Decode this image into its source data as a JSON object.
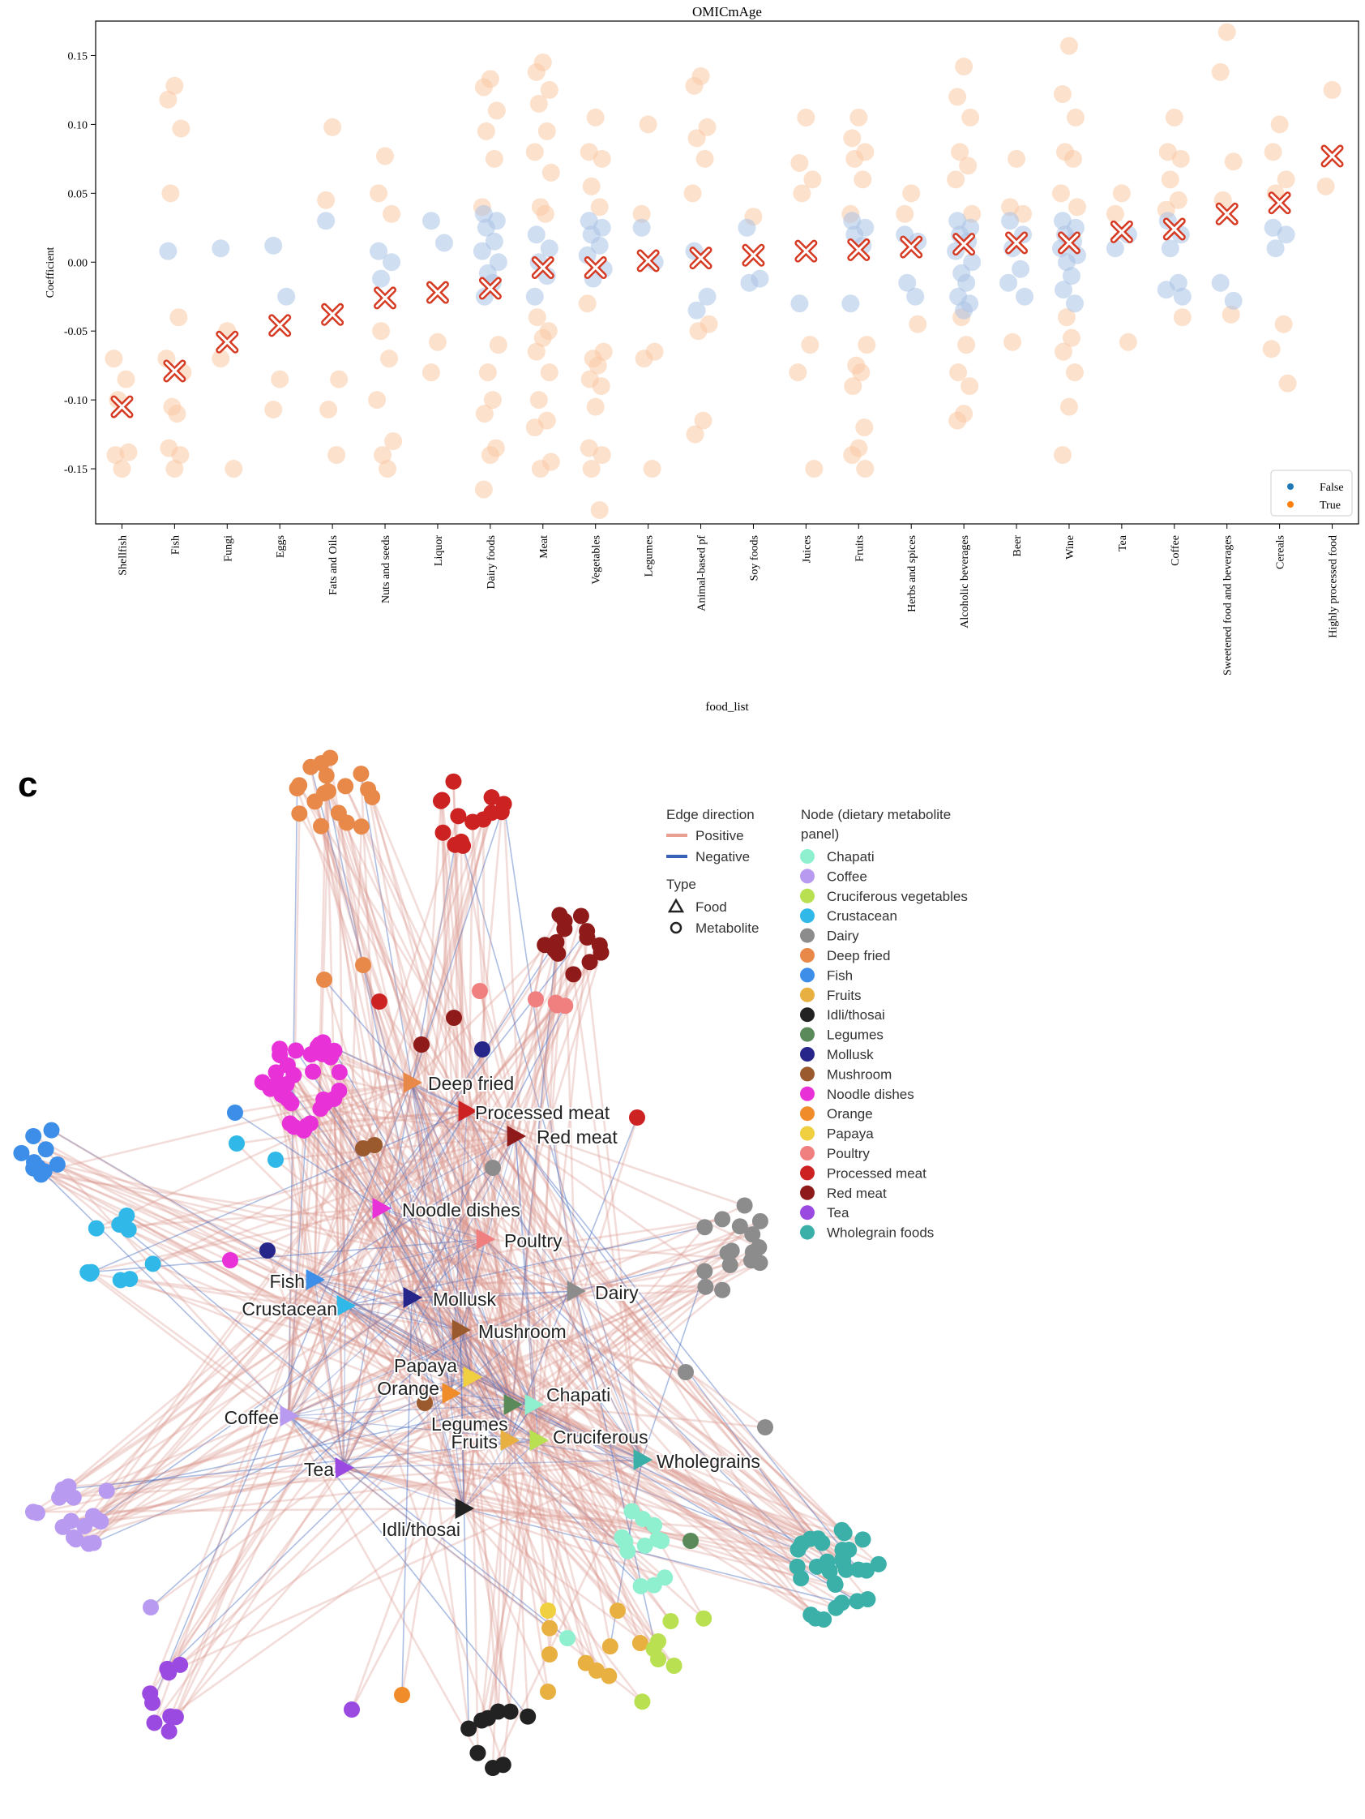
{
  "chart_data": {
    "type": "scatter",
    "title": "OMICmAge",
    "xlabel": "food_list",
    "ylabel": "Coefficient",
    "ylim": [
      -0.19,
      0.175
    ],
    "yticks": [
      "0.15",
      "0.10",
      "0.05",
      "0.00",
      "-0.05",
      "-0.10",
      "-0.15"
    ],
    "ytick_values": [
      0.15,
      0.1,
      0.05,
      0.0,
      -0.05,
      -0.1,
      -0.15
    ],
    "legend": {
      "position": "bottom-right",
      "entries": [
        {
          "label": "False",
          "color": "#1f77b4"
        },
        {
          "label": "True",
          "color": "#ff7f0e"
        }
      ]
    },
    "categories": [
      "Shellfish",
      "Fish",
      "Fungi",
      "Eggs",
      "Fats and Oils",
      "Nuts and seeds",
      "Liquor",
      "Dairy foods",
      "Meat",
      "Vegetables",
      "Legumes",
      "Animal-based pf",
      "Soy foods",
      "Juices",
      "Fruits",
      "Herbs and spices",
      "Alcoholic beverages",
      "Beer",
      "Wine",
      "Tea",
      "Coffee",
      "Sweetened food and beverages",
      "Cereals",
      "Highly processed food"
    ],
    "means": [
      -0.105,
      -0.079,
      -0.058,
      -0.046,
      -0.038,
      -0.026,
      -0.022,
      -0.019,
      -0.004,
      -0.004,
      0.001,
      0.003,
      0.005,
      0.008,
      0.009,
      0.011,
      0.013,
      0.014,
      0.014,
      0.022,
      0.024,
      0.035,
      0.043,
      0.077
    ],
    "points": [
      {
        "t": [
          -0.15,
          -0.14,
          -0.138,
          -0.1,
          -0.085,
          -0.07
        ],
        "f": []
      },
      {
        "t": [
          0.128,
          0.118,
          0.097,
          0.05,
          -0.04,
          -0.07,
          -0.08,
          -0.105,
          -0.11,
          -0.135,
          -0.14,
          -0.15
        ],
        "f": [
          0.008
        ]
      },
      {
        "t": [
          -0.05,
          -0.07,
          -0.15
        ],
        "f": [
          0.01
        ]
      },
      {
        "t": [
          -0.085,
          -0.107
        ],
        "f": [
          0.012,
          -0.025
        ]
      },
      {
        "t": [
          0.098,
          0.045,
          -0.085,
          -0.107,
          -0.14
        ],
        "f": [
          0.03
        ]
      },
      {
        "t": [
          0.077,
          0.05,
          0.035,
          -0.05,
          -0.07,
          -0.1,
          -0.13,
          -0.14,
          -0.15
        ],
        "f": [
          0.008,
          0.0,
          -0.012
        ]
      },
      {
        "t": [
          -0.058,
          -0.08
        ],
        "f": [
          0.03,
          0.014
        ]
      },
      {
        "t": [
          0.133,
          0.127,
          0.11,
          0.095,
          0.075,
          0.04,
          -0.06,
          -0.08,
          -0.1,
          -0.11,
          -0.135,
          -0.14,
          -0.165
        ],
        "f": [
          0.035,
          0.03,
          0.025,
          0.015,
          0.008,
          0.0,
          -0.008,
          -0.015,
          -0.025
        ]
      },
      {
        "t": [
          0.145,
          0.138,
          0.125,
          0.115,
          0.095,
          0.08,
          0.065,
          0.04,
          0.035,
          -0.04,
          -0.05,
          -0.055,
          -0.065,
          -0.08,
          -0.1,
          -0.115,
          -0.12,
          -0.145,
          -0.15
        ],
        "f": [
          0.02,
          0.01,
          0.0,
          -0.01,
          -0.025
        ]
      },
      {
        "t": [
          0.105,
          0.08,
          0.075,
          0.055,
          0.04,
          -0.03,
          -0.065,
          -0.07,
          -0.075,
          -0.085,
          -0.09,
          -0.105,
          -0.135,
          -0.14,
          -0.15,
          -0.18
        ],
        "f": [
          0.03,
          0.025,
          0.02,
          0.012,
          0.005,
          -0.005,
          -0.012
        ]
      },
      {
        "t": [
          0.1,
          0.035,
          -0.065,
          -0.07,
          -0.15
        ],
        "f": [
          0.025,
          0.0
        ]
      },
      {
        "t": [
          0.135,
          0.128,
          0.098,
          0.09,
          0.075,
          0.05,
          -0.045,
          -0.05,
          -0.115,
          -0.125
        ],
        "f": [
          0.008,
          -0.025,
          -0.035
        ]
      },
      {
        "t": [
          0.033
        ],
        "f": [
          0.025,
          -0.012,
          -0.015
        ]
      },
      {
        "t": [
          0.105,
          0.072,
          0.06,
          0.05,
          -0.06,
          -0.08,
          -0.15
        ],
        "f": [
          -0.03
        ]
      },
      {
        "t": [
          0.105,
          0.09,
          0.08,
          0.075,
          0.06,
          0.035,
          -0.06,
          -0.075,
          -0.08,
          -0.09,
          -0.12,
          -0.135,
          -0.14,
          -0.15
        ],
        "f": [
          0.03,
          0.025,
          0.02,
          0.012,
          -0.03
        ]
      },
      {
        "t": [
          0.05,
          0.035,
          -0.045
        ],
        "f": [
          0.02,
          0.015,
          -0.015,
          -0.025
        ]
      },
      {
        "t": [
          0.142,
          0.12,
          0.105,
          0.08,
          0.07,
          0.06,
          0.035,
          -0.04,
          -0.06,
          -0.08,
          -0.09,
          -0.11,
          -0.115
        ],
        "f": [
          0.03,
          0.025,
          0.02,
          0.015,
          0.008,
          0.0,
          -0.008,
          -0.015,
          -0.025,
          -0.03,
          -0.035
        ]
      },
      {
        "t": [
          0.075,
          0.04,
          0.035,
          -0.058
        ],
        "f": [
          0.03,
          0.02,
          0.01,
          -0.005,
          -0.015,
          -0.025
        ]
      },
      {
        "t": [
          0.157,
          0.122,
          0.105,
          0.08,
          0.075,
          0.05,
          0.04,
          -0.04,
          -0.055,
          -0.065,
          -0.08,
          -0.105,
          -0.14
        ],
        "f": [
          0.03,
          0.025,
          0.02,
          0.015,
          0.01,
          0.005,
          0.0,
          -0.01,
          -0.02,
          -0.03
        ]
      },
      {
        "t": [
          0.05,
          0.035,
          -0.058
        ],
        "f": [
          0.01,
          0.02
        ]
      },
      {
        "t": [
          0.105,
          0.08,
          0.075,
          0.06,
          0.045,
          0.038,
          -0.04
        ],
        "f": [
          0.03,
          0.02,
          0.01,
          -0.015,
          -0.02,
          -0.025
        ]
      },
      {
        "t": [
          0.167,
          0.138,
          0.073,
          0.045,
          -0.038
        ],
        "f": [
          -0.015,
          -0.028
        ]
      },
      {
        "t": [
          0.1,
          0.08,
          0.06,
          0.05,
          -0.045,
          -0.063,
          -0.088
        ],
        "f": [
          0.025,
          0.02,
          0.01
        ]
      },
      {
        "t": [
          0.125,
          0.055
        ],
        "f": []
      }
    ]
  },
  "network": {
    "panel_label": "c",
    "legend": {
      "edge_title": "Edge direction",
      "edge_items": [
        {
          "label": "Positive",
          "color": "#e8a090"
        },
        {
          "label": "Negative",
          "color": "#3a63b8"
        }
      ],
      "type_title": "Type",
      "type_items": [
        {
          "label": "Food",
          "symbol": "triangle"
        },
        {
          "label": "Metabolite",
          "symbol": "circle"
        }
      ],
      "node_title_1": "Node (dietary metabolite",
      "node_title_2": "panel)",
      "node_items": [
        {
          "label": "Chapati",
          "color": "#8ff0d0"
        },
        {
          "label": "Coffee",
          "color": "#b89af0"
        },
        {
          "label": "Cruciferous vegetables",
          "color": "#b8e050"
        },
        {
          "label": "Crustacean",
          "color": "#30b8e8"
        },
        {
          "label": "Dairy",
          "color": "#8c8c8c"
        },
        {
          "label": "Deep fried",
          "color": "#e8894a"
        },
        {
          "label": "Fish",
          "color": "#3c8ee8"
        },
        {
          "label": "Fruits",
          "color": "#e8b040"
        },
        {
          "label": "Idli/thosai",
          "color": "#222222"
        },
        {
          "label": "Legumes",
          "color": "#5a8a5a"
        },
        {
          "label": "Mollusk",
          "color": "#25258a"
        },
        {
          "label": "Mushroom",
          "color": "#9a5a2e"
        },
        {
          "label": "Noodle dishes",
          "color": "#e832d8"
        },
        {
          "label": "Orange",
          "color": "#f08c2a"
        },
        {
          "label": "Papaya",
          "color": "#f0d040"
        },
        {
          "label": "Poultry",
          "color": "#f08080"
        },
        {
          "label": "Processed meat",
          "color": "#cc2222"
        },
        {
          "label": "Red meat",
          "color": "#8e1a1a"
        },
        {
          "label": "Tea",
          "color": "#9a4ae0"
        },
        {
          "label": "Wholegrain foods",
          "color": "#3ab0a8"
        }
      ]
    },
    "foods": [
      {
        "label": "Deep fried",
        "panel": "Deep fried"
      },
      {
        "label": "Processed meat",
        "panel": "Processed meat"
      },
      {
        "label": "Red meat",
        "panel": "Red meat"
      },
      {
        "label": "Noodle dishes",
        "panel": "Noodle dishes"
      },
      {
        "label": "Poultry",
        "panel": "Poultry"
      },
      {
        "label": "Fish",
        "panel": "Fish"
      },
      {
        "label": "Mollusk",
        "panel": "Mollusk"
      },
      {
        "label": "Dairy",
        "panel": "Dairy"
      },
      {
        "label": "Crustacean",
        "panel": "Crustacean"
      },
      {
        "label": "Mushroom",
        "panel": "Mushroom"
      },
      {
        "label": "Papaya",
        "panel": "Papaya"
      },
      {
        "label": "Orange",
        "panel": "Orange"
      },
      {
        "label": "Chapati",
        "panel": "Chapati"
      },
      {
        "label": "Legumes",
        "panel": "Legumes"
      },
      {
        "label": "Coffee",
        "panel": "Coffee"
      },
      {
        "label": "Cruciferous",
        "panel": "Cruciferous vegetables"
      },
      {
        "label": "Fruits",
        "panel": "Fruits"
      },
      {
        "label": "Wholegrains",
        "panel": "Wholegrain foods"
      },
      {
        "label": "Tea",
        "panel": "Tea"
      },
      {
        "label": "Idli/thosai",
        "panel": "Idli/thosai"
      }
    ]
  }
}
